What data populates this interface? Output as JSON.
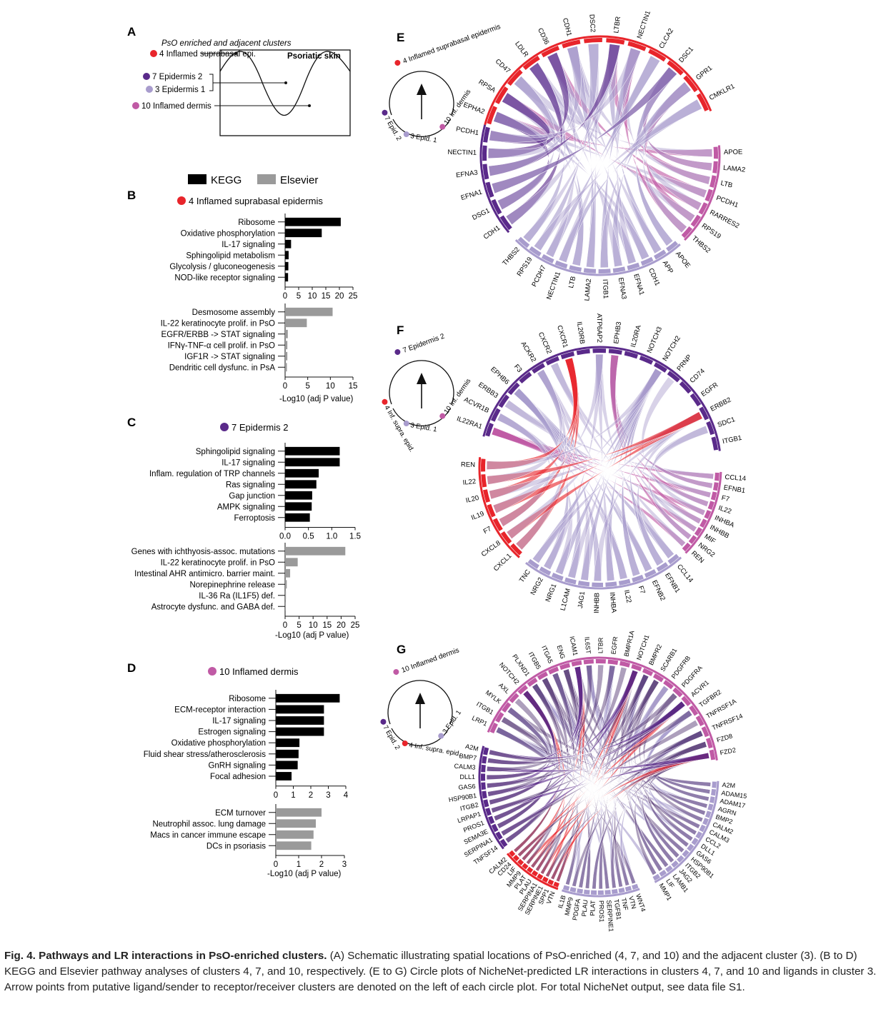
{
  "panels": {
    "A": {
      "letter": "A",
      "heading": "PsO enriched and adjacent clusters",
      "box_label": "Psoriatic skin",
      "layers": [
        {
          "label": "4 Inflamed suprabasal  epi.",
          "color": "#e8252b"
        },
        {
          "label": "7 Epidermis 2",
          "color": "#5a2a8a"
        },
        {
          "label": "3 Epidermis 1",
          "color": "#a89ccd"
        },
        {
          "label": "10 Inflamed dermis",
          "color": "#c05aa5"
        }
      ]
    },
    "B": {
      "letter": "B",
      "legend": [
        {
          "label": "KEGG",
          "color": "#000000"
        },
        {
          "label": "Elsevier",
          "color": "#9a9a9a"
        }
      ],
      "title": "4 Inflamed suprabasal epidermis",
      "dot_color": "#e8252b",
      "kegg": {
        "labels": [
          "Ribosome",
          "Oxidative phosphorylation",
          "IL-17 signaling",
          "Sphingolipid metabolism",
          "Glycolysis / gluconeogenesis",
          "NOD-like receptor signaling"
        ],
        "values": [
          20.5,
          13.5,
          2.2,
          1.3,
          1.2,
          1.1
        ],
        "ticks": [
          "0",
          "5",
          "10",
          "15",
          "20",
          "25"
        ],
        "max": 25
      },
      "elsevier": {
        "labels": [
          "Desmosome assembly",
          "IL-22 keratinocyte prolif. in PsO",
          "EGFR/ERBB -> STAT signaling",
          "IFNγ-TNF-α cell prolif. in PsO",
          "IGF1R -> STAT signaling",
          "Dendritic cell dysfunc. in PsA"
        ],
        "values": [
          10.5,
          4.8,
          0.6,
          0.5,
          0.5,
          0.4
        ],
        "ticks": [
          "0",
          "5",
          "10",
          "15"
        ],
        "max": 15
      },
      "xlabel": "-Log10 (adj P value)"
    },
    "C": {
      "letter": "C",
      "title": "7 Epidermis 2",
      "dot_color": "#5a2a8a",
      "kegg": {
        "labels": [
          "Sphingolipid signaling",
          "IL-17 signaling",
          "Inflam. regulation of TRP channels",
          "Ras signaling",
          "Gap junction",
          "AMPK signaling",
          "Ferroptosis"
        ],
        "values": [
          1.17,
          1.17,
          0.72,
          0.67,
          0.58,
          0.57,
          0.53
        ],
        "ticks": [
          "0.0",
          "0.5",
          "1.0",
          "1.5"
        ],
        "max": 1.5
      },
      "elsevier": {
        "labels": [
          "Genes with ichthyosis-assoc. mutations",
          "IL-22 keratinocyte prolif. in PsO",
          "Intestinal AHR antimicro. barrier maint.",
          "Norepinephrine release",
          "IL-36 Ra (IL1F5) def.",
          "Astrocyte dysfunc. and GABA def."
        ],
        "values": [
          21.5,
          4.5,
          1.8,
          0.6,
          0.3,
          0.2
        ],
        "ticks": [
          "0",
          "5",
          "10",
          "15",
          "20",
          "25"
        ],
        "max": 25
      },
      "xlabel": "-Log10 (adj P value)"
    },
    "D": {
      "letter": "D",
      "title": "10 Inflamed dermis",
      "dot_color": "#c05aa5",
      "kegg": {
        "labels": [
          "Ribosome",
          "ECM-receptor interaction",
          "IL-17 signaling",
          "Estrogen signaling",
          "Oxidative phosphorylation",
          "Fluid shear stress/atherosclerosis",
          "GnRH signaling",
          "Focal adhesion"
        ],
        "values": [
          3.65,
          2.75,
          2.75,
          2.75,
          1.35,
          1.3,
          1.25,
          0.9
        ],
        "ticks": [
          "0",
          "1",
          "2",
          "3",
          "4"
        ],
        "max": 4
      },
      "elsevier": {
        "labels": [
          "ECM turnover",
          "Neutrophil assoc. lung damage",
          "Macs in cancer immune escape",
          "DCs in psoriasis"
        ],
        "values": [
          2.0,
          1.75,
          1.65,
          1.55
        ],
        "ticks": [
          "0",
          "1",
          "2",
          "3"
        ],
        "max": 3
      },
      "xlabel": "-Log10 (adj P value)"
    },
    "E": {
      "letter": "E",
      "receiver": {
        "label": "4 Inflamed suprabasal epidermis",
        "color": "#e8252b"
      },
      "senders": [
        {
          "label": "7 Epid. 2",
          "color": "#5a2a8a"
        },
        {
          "label": "3 Epid. 1",
          "color": "#a89ccd"
        },
        {
          "label": "10 Inf. dermis",
          "color": "#c05aa5"
        }
      ],
      "receptors": [
        "EPHA2",
        "RPSA",
        "CD47",
        "LDLR",
        "CD36",
        "CDH1",
        "DSC2",
        "LTBR",
        "NECTIN1",
        "CLCA2",
        "DSC1",
        "GPR1",
        "CMKLR1"
      ],
      "ligands_right": [
        "APOE",
        "LAMA2",
        "LTB",
        "PCDH1",
        "RARRES2",
        "RPS19",
        "THBS2"
      ],
      "ligands_bottom": [
        "APOE",
        "APP",
        "CDH1",
        "EFNA1",
        "EFNA3",
        "ITGB1",
        "LAMA2",
        "LTB",
        "NECTIN1",
        "PCDH7",
        "RPS19",
        "THBS2"
      ],
      "ligands_left": [
        "CDH1",
        "DSG1",
        "EFNA1",
        "EFNA3",
        "NECTIN1",
        "PCDH1"
      ]
    },
    "F": {
      "letter": "F",
      "receiver": {
        "label": "7 Epidermis 2",
        "color": "#5a2a8a"
      },
      "senders": [
        {
          "label": "4 Inf. supra. epid.",
          "color": "#e8252b"
        },
        {
          "label": "3 Epid. 1",
          "color": "#a89ccd"
        },
        {
          "label": "10 Inf. dermis",
          "color": "#c05aa5"
        }
      ],
      "receptors": [
        "IL22RA1",
        "ACVR1B",
        "ERBB3",
        "EPHB6",
        "F3",
        "ACKR2",
        "CXCR2",
        "CXCR1",
        "IL20RB",
        "ATP6AP2",
        "EPHB3",
        "IL20RA",
        "NOTCH3",
        "NOTCH2",
        "PRNP",
        "CD74",
        "EGFR",
        "ERBB2",
        "SDC1",
        "ITGB1"
      ],
      "ligands_right": [
        "CCL14",
        "EFNB1",
        "F7",
        "IL22",
        "INHBA",
        "INHBB",
        "MIF",
        "NRG2",
        "REN"
      ],
      "ligands_bottom": [
        "CCL14",
        "EFNB1",
        "EFNB2",
        "F7",
        "IL22",
        "INHBA",
        "INHBB",
        "JAG1",
        "L1CAM",
        "NRG1",
        "NRG2",
        "TNC"
      ],
      "ligands_left": [
        "CXCL1",
        "CXCL8",
        "F7",
        "IL19",
        "IL20",
        "IL22",
        "REN"
      ]
    },
    "G": {
      "letter": "G",
      "receiver": {
        "label": "10 Inflamed dermis",
        "color": "#c05aa5"
      },
      "senders": [
        {
          "label": "7 Epid. 2",
          "color": "#5a2a8a"
        },
        {
          "label": "4 Inf. supra. epid.",
          "color": "#e8252b"
        },
        {
          "label": "3 Epid. 1",
          "color": "#a89ccd"
        }
      ],
      "receptors": [
        "LRP1",
        "ITGB1",
        "MYLK",
        "AXL",
        "NOTCH2",
        "PLXND1",
        "ITGB5",
        "ITGA5",
        "ENG",
        "ICAM1",
        "IL6ST",
        "LTBR",
        "EGFR",
        "BMPR1A",
        "NOTCH1",
        "BMPR2",
        "SCARB1",
        "PDGFRB",
        "PDGFRA",
        "ACVR1",
        "TGFBR2",
        "TNFRSF1A",
        "TNFRSF14",
        "FZD8",
        "FZD2"
      ],
      "ligands_right": [
        "A2M",
        "ADAM15",
        "ADAM17",
        "AGRN",
        "BMP2",
        "CALM2",
        "CALM3",
        "CCL2",
        "DLL1",
        "GAS6",
        "HSP90B1",
        "ITGB2",
        "JAG2",
        "LAMB1",
        "LIF",
        "MMP1"
      ],
      "ligands_bottom": [
        "WNT4",
        "VTN",
        "TNF",
        "TGFB1",
        "SERPINE1",
        "PROS1",
        "PLAT",
        "PLAU",
        "PDGFA",
        "MMP9",
        "IL1B"
      ],
      "ligands_left": [
        "TNFSF14",
        "SERPINA1",
        "SEMA3E",
        "PROS1",
        "LRPAP1",
        "ITGB2",
        "HSP90B1",
        "GAS6",
        "DLL1",
        "CALM3",
        "BMP7",
        "A2M"
      ],
      "ligands_red": [
        "VTN",
        "SPP1",
        "SERPINE1",
        "SERPINA1",
        "PLAU",
        "PLAT",
        "MMP9",
        "LIF",
        "CD24",
        "CALM2"
      ]
    }
  },
  "caption": {
    "lead": "Fig. 4. Pathways and LR interactions in PsO-enriched clusters.",
    "text_a": " (A) Schematic illustrating spatial locations of PsO-enriched (4, 7, and 10) and the adjacent cluster (3). (B to D) KEGG and Elsevier pathway analyses of clusters 4, 7, and 10, respectively. (E to G) Circle plots of NicheNet-predicted LR interactions in clusters 4, 7, and 10 and ligands in cluster 3. Arrow points from putative ligand/sender to receptor/receiver clusters are denoted on the left of each circle plot. For total NicheNet output, see data file S1."
  }
}
